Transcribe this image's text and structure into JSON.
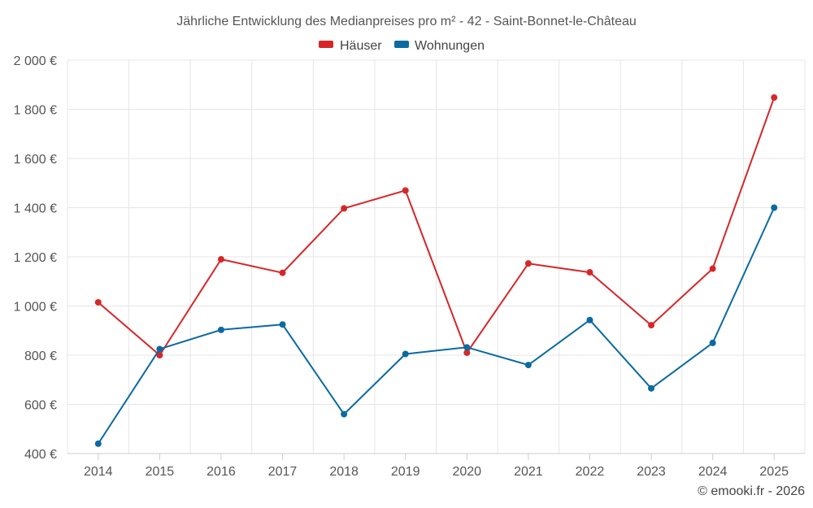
{
  "chart_data": {
    "type": "line",
    "title": "Jährliche Entwicklung des Medianpreises pro m² - 42 - Saint-Bonnet-le-Château",
    "categories": [
      "2014",
      "2015",
      "2016",
      "2017",
      "2018",
      "2019",
      "2020",
      "2021",
      "2022",
      "2023",
      "2024",
      "2025"
    ],
    "series": [
      {
        "name": "Häuser",
        "color": "#d62728",
        "values": [
          1015,
          800,
          1190,
          1135,
          1397,
          1470,
          810,
          1173,
          1137,
          922,
          1152,
          1848
        ]
      },
      {
        "name": "Wohnungen",
        "color": "#0b6aa2",
        "values": [
          440,
          825,
          903,
          925,
          560,
          805,
          832,
          760,
          943,
          665,
          850,
          1400
        ]
      }
    ],
    "ylim": [
      400,
      2000
    ],
    "yticks": [
      400,
      600,
      800,
      1000,
      1200,
      1400,
      1600,
      1800,
      2000
    ],
    "ytick_labels": [
      "400 €",
      "600 €",
      "800 €",
      "1 000 €",
      "1 200 €",
      "1 400 €",
      "1 600 €",
      "1 800 €",
      "2 000 €"
    ],
    "grid": true,
    "legend_position": "top-center"
  },
  "credit": "© emooki.fr - 2026"
}
